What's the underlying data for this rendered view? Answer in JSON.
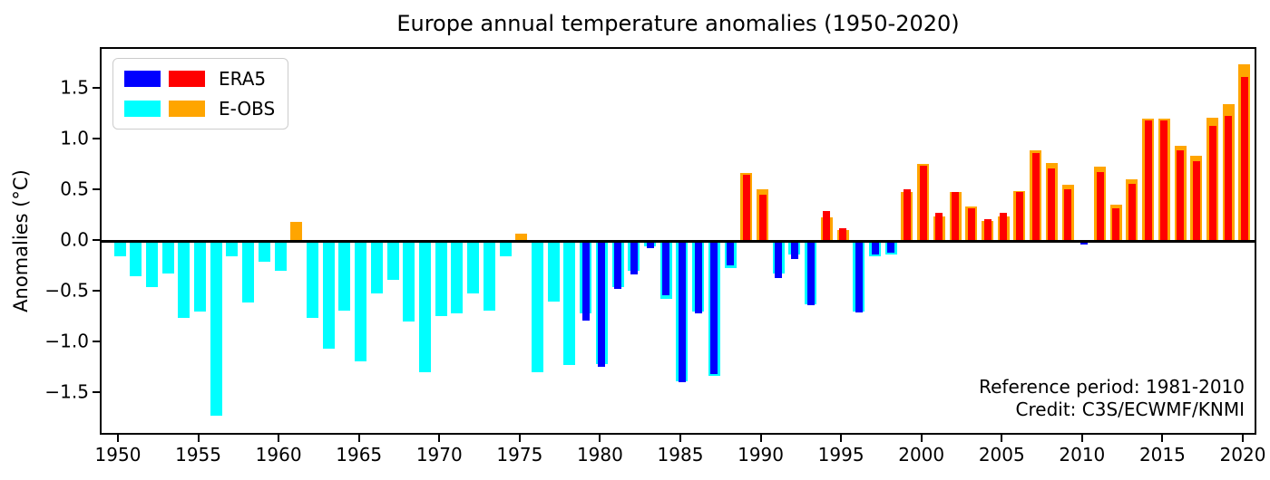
{
  "chart_data": {
    "type": "bar",
    "title": "Europe annual temperature anomalies (1950-2020)",
    "ylabel": "Anomalies (°C)",
    "xlabel": "",
    "ylim": [
      -1.91,
      1.91
    ],
    "grid": false,
    "legend_position": "upper left",
    "x": [
      1950,
      1951,
      1952,
      1953,
      1954,
      1955,
      1956,
      1957,
      1958,
      1959,
      1960,
      1961,
      1962,
      1963,
      1964,
      1965,
      1966,
      1967,
      1968,
      1969,
      1970,
      1971,
      1972,
      1973,
      1974,
      1975,
      1976,
      1977,
      1978,
      1979,
      1980,
      1981,
      1982,
      1983,
      1984,
      1985,
      1986,
      1987,
      1988,
      1989,
      1990,
      1991,
      1992,
      1993,
      1994,
      1995,
      1996,
      1997,
      1998,
      1999,
      2000,
      2001,
      2002,
      2003,
      2004,
      2005,
      2006,
      2007,
      2008,
      2009,
      2010,
      2011,
      2012,
      2013,
      2014,
      2015,
      2016,
      2017,
      2018,
      2019,
      2020
    ],
    "series": [
      {
        "name": "ERA5",
        "colors": {
          "positive": "#ff0000",
          "negative": "#0000ff"
        },
        "values": [
          null,
          null,
          null,
          null,
          null,
          null,
          null,
          null,
          null,
          null,
          null,
          null,
          null,
          null,
          null,
          null,
          null,
          null,
          null,
          null,
          null,
          null,
          null,
          null,
          null,
          null,
          null,
          null,
          null,
          -0.78,
          -1.24,
          -0.47,
          -0.33,
          -0.07,
          -0.53,
          -1.39,
          -0.71,
          -1.31,
          -0.24,
          0.66,
          0.46,
          -0.36,
          -0.17,
          -0.63,
          0.3,
          0.13,
          -0.7,
          -0.13,
          -0.11,
          0.51,
          0.75,
          0.28,
          0.49,
          0.33,
          0.22,
          0.28,
          0.49,
          0.87,
          0.72,
          0.51,
          -0.03,
          0.68,
          0.33,
          0.57,
          1.19,
          1.19,
          0.9,
          0.79,
          1.14,
          1.24,
          1.62
        ]
      },
      {
        "name": "E-OBS",
        "colors": {
          "positive": "#ffa500",
          "negative": "#00ffff"
        },
        "values": [
          -0.15,
          -0.34,
          -0.45,
          -0.32,
          -0.75,
          -0.69,
          -1.72,
          -0.15,
          -0.6,
          -0.2,
          -0.29,
          0.19,
          -0.75,
          -1.06,
          -0.68,
          -1.18,
          -0.51,
          -0.38,
          -0.79,
          -1.29,
          -0.74,
          -0.71,
          -0.51,
          -0.68,
          -0.15,
          0.08,
          -1.29,
          -0.59,
          -1.22,
          -0.71,
          -1.21,
          -0.45,
          -0.29,
          -0.05,
          -0.57,
          -1.38,
          -0.69,
          -1.33,
          -0.26,
          0.67,
          0.51,
          -0.32,
          -0.13,
          -0.62,
          0.24,
          0.11,
          -0.69,
          -0.15,
          -0.13,
          0.49,
          0.76,
          0.25,
          0.49,
          0.34,
          0.2,
          0.25,
          0.5,
          0.9,
          0.77,
          0.56,
          -0.01,
          0.74,
          0.36,
          0.61,
          1.21,
          1.21,
          0.94,
          0.84,
          1.22,
          1.35,
          1.75
        ]
      }
    ],
    "xticks": [
      1950,
      1955,
      1960,
      1965,
      1970,
      1975,
      1980,
      1985,
      1990,
      1995,
      2000,
      2005,
      2010,
      2015,
      2020
    ],
    "yticks": [
      {
        "v": 1.5,
        "label": "1.5"
      },
      {
        "v": 1.0,
        "label": "1.0"
      },
      {
        "v": 0.5,
        "label": "0.5"
      },
      {
        "v": 0.0,
        "label": "0.0"
      },
      {
        "v": -0.5,
        "label": "−0.5"
      },
      {
        "v": -1.0,
        "label": "−1.0"
      },
      {
        "v": -1.5,
        "label": "−1.5"
      }
    ],
    "annotations": [
      "Reference period: 1981-2010",
      "Credit: C3S/ECWMF/KNMI"
    ]
  }
}
